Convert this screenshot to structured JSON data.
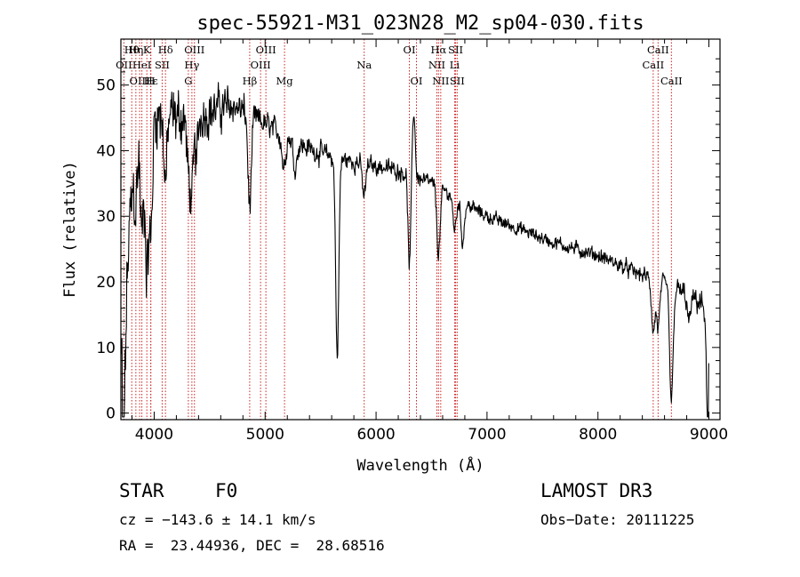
{
  "chart_data": {
    "type": "line",
    "title": "spec-55921-M31_023N28_M2_sp04-030.fits",
    "xlabel": "Wavelength (Å)",
    "ylabel": "Flux (relative)",
    "xlim": [
      3700,
      9100
    ],
    "ylim": [
      -1,
      57
    ],
    "xticks": [
      4000,
      5000,
      6000,
      7000,
      8000,
      9000
    ],
    "yticks": [
      0,
      10,
      20,
      30,
      40,
      50
    ],
    "line_color": "#000000",
    "marker_color": "#cc2222",
    "continuum": [
      [
        3700,
        38
      ],
      [
        3800,
        44
      ],
      [
        4000,
        46
      ],
      [
        4200,
        45
      ],
      [
        4500,
        46
      ],
      [
        4700,
        47
      ],
      [
        4900,
        45
      ],
      [
        5000,
        44
      ],
      [
        5300,
        41
      ],
      [
        5600,
        39
      ],
      [
        5900,
        38
      ],
      [
        6200,
        37
      ],
      [
        6500,
        35
      ],
      [
        6700,
        33
      ],
      [
        7000,
        30
      ],
      [
        7300,
        28
      ],
      [
        7600,
        26
      ],
      [
        8000,
        24
      ],
      [
        8400,
        21
      ],
      [
        8700,
        19
      ],
      [
        9000,
        16
      ]
    ],
    "absorption": [
      [
        3705,
        30,
        20
      ],
      [
        3722,
        14,
        15
      ],
      [
        3734,
        12,
        15
      ],
      [
        3750,
        10,
        15
      ],
      [
        3770,
        10,
        15
      ],
      [
        3798,
        10,
        15
      ],
      [
        3835,
        12,
        15
      ],
      [
        3889,
        18,
        15
      ],
      [
        3934,
        22,
        15
      ],
      [
        3970,
        18,
        15
      ],
      [
        4102,
        10,
        15
      ],
      [
        4308,
        8,
        15
      ],
      [
        4340,
        12,
        15
      ],
      [
        4383,
        6,
        15
      ],
      [
        4861,
        14,
        15
      ],
      [
        5167,
        5,
        15
      ],
      [
        5270,
        4,
        15
      ],
      [
        5650,
        30,
        14
      ],
      [
        5892,
        5,
        15
      ],
      [
        6300,
        14,
        12
      ],
      [
        6563,
        10,
        15
      ],
      [
        6708,
        5,
        15
      ],
      [
        6780,
        6,
        15
      ],
      [
        8498,
        8,
        15
      ],
      [
        8542,
        7,
        15
      ],
      [
        8662,
        18,
        15
      ],
      [
        8820,
        4,
        15
      ],
      [
        8990,
        12,
        15
      ],
      [
        9005,
        14,
        15
      ]
    ],
    "emission": [
      [
        6340,
        10,
        12
      ]
    ],
    "noise": [
      [
        3700,
        8
      ],
      [
        4000,
        6
      ],
      [
        5000,
        2.2
      ],
      [
        6000,
        1.6
      ],
      [
        7000,
        1.2
      ],
      [
        8500,
        1.4
      ],
      [
        9000,
        2.2
      ]
    ],
    "series": [
      {
        "name": "flux",
        "x_start": 3702,
        "x_end": 9000,
        "x_step": 4
      }
    ],
    "lines": [
      {
        "name": "OII",
        "wave": 3727,
        "row": 1
      },
      {
        "name": "Hθ",
        "wave": 3798,
        "row": 0
      },
      {
        "name": "OIII",
        "wave": 3869,
        "row": 2
      },
      {
        "name": "Hη",
        "wave": 3835,
        "row": 0
      },
      {
        "name": "HeI",
        "wave": 3889,
        "row": 1
      },
      {
        "name": "K",
        "wave": 3934,
        "row": 0
      },
      {
        "name": "H",
        "wave": 3969,
        "row": 2
      },
      {
        "name": "Hε",
        "wave": 3970,
        "row": 2
      },
      {
        "name": "SII",
        "wave": 4072,
        "row": 1
      },
      {
        "name": "Hδ",
        "wave": 4102,
        "row": 0
      },
      {
        "name": "OIII",
        "wave": 4363,
        "row": 0
      },
      {
        "name": "Hγ",
        "wave": 4340,
        "row": 1
      },
      {
        "name": "G",
        "wave": 4308,
        "row": 2
      },
      {
        "name": "Hβ",
        "wave": 4861,
        "row": 2
      },
      {
        "name": "OIII",
        "wave": 4959,
        "row": 1
      },
      {
        "name": "OIII",
        "wave": 5007,
        "row": 0
      },
      {
        "name": "Mg",
        "wave": 5175,
        "row": 2
      },
      {
        "name": "Na",
        "wave": 5893,
        "row": 1
      },
      {
        "name": "OI",
        "wave": 6300,
        "row": 0
      },
      {
        "name": "OI",
        "wave": 6364,
        "row": 2
      },
      {
        "name": "NII",
        "wave": 6548,
        "row": 1
      },
      {
        "name": "Hα",
        "wave": 6563,
        "row": 0
      },
      {
        "name": "NII",
        "wave": 6583,
        "row": 2
      },
      {
        "name": "SII",
        "wave": 6717,
        "row": 0
      },
      {
        "name": "Li",
        "wave": 6708,
        "row": 1
      },
      {
        "name": "SII",
        "wave": 6731,
        "row": 2
      },
      {
        "name": "CaII",
        "wave": 8498,
        "row": 1
      },
      {
        "name": "CaII",
        "wave": 8542,
        "row": 0
      },
      {
        "name": "CaII",
        "wave": 8662,
        "row": 2
      }
    ]
  },
  "info": {
    "object_class": "STAR",
    "subclass": "F0",
    "survey": "LAMOST DR3",
    "cz": "cz = −143.6 ± 14.1 km/s",
    "obs_date": "Obs−Date: 20111225",
    "coords": "RA =  23.44936, DEC =  28.68516"
  }
}
